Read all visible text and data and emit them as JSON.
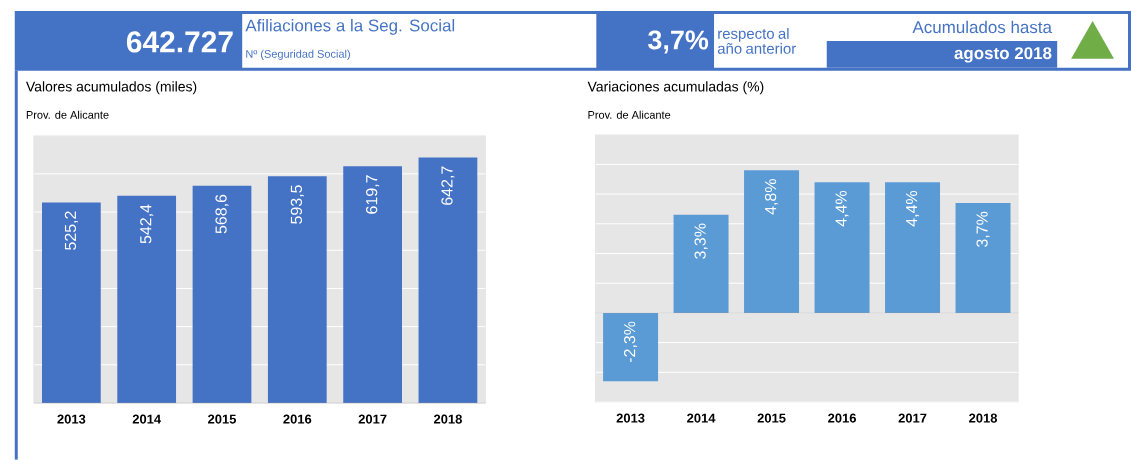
{
  "chart_data": [
    {
      "type": "other",
      "annotations": [
        "642.727",
        "Afiliaciones a la Seg. Social",
        "Nº (Seguridad Social)",
        "3,7%",
        "respecto al año anterior",
        "Acumulados hasta",
        "agosto 2018"
      ]
    },
    {
      "type": "bar",
      "title": "Valores acumulados (miles)",
      "subtitle": "Prov. de Alicante",
      "categories": [
        "2013",
        "2014",
        "2015",
        "2016",
        "2017",
        "2018"
      ],
      "values": [
        525.2,
        542.4,
        568.6,
        593.5,
        619.7,
        642.7
      ],
      "value_labels": [
        "525,2",
        "542,4",
        "568,6",
        "593,5",
        "619,7",
        "642,7"
      ],
      "color": "#4472c4",
      "ylim": [
        0,
        700
      ],
      "yticks": [
        {
          "value": 0,
          "label": null
        },
        {
          "value": 100,
          "label": null
        },
        {
          "value": 200,
          "label": null
        },
        {
          "value": 300,
          "label": null
        },
        {
          "value": 400,
          "label": null
        },
        {
          "value": 500,
          "label": null
        },
        {
          "value": 600,
          "label": null
        },
        {
          "value": 700,
          "label": null
        }
      ],
      "tick_labels": "x",
      "grid": "y"
    },
    {
      "type": "bar",
      "title": "Variaciones acumuladas (%)",
      "subtitle": "Prov. de Alicante",
      "categories": [
        "2013",
        "2014",
        "2015",
        "2016",
        "2017",
        "2018"
      ],
      "values": [
        -2.3,
        3.3,
        4.8,
        4.4,
        4.4,
        3.7
      ],
      "value_labels": [
        "-2,3%",
        "3,3%",
        "4,8%",
        "4,4%",
        "4,4%",
        "3,7%"
      ],
      "color": "#5b9bd5",
      "ylim": [
        -3,
        6
      ],
      "yticks": [
        {
          "value": -3,
          "label": null
        },
        {
          "value": -2,
          "label": null
        },
        {
          "value": -1,
          "label": null
        },
        {
          "value": 0,
          "label": null
        },
        {
          "value": 1,
          "label": null
        },
        {
          "value": 2,
          "label": null
        },
        {
          "value": 3,
          "label": null
        },
        {
          "value": 4,
          "label": null
        },
        {
          "value": 5,
          "label": null
        },
        {
          "value": 6,
          "label": null
        }
      ],
      "tick_labels": "x",
      "grid": "y"
    }
  ]
}
